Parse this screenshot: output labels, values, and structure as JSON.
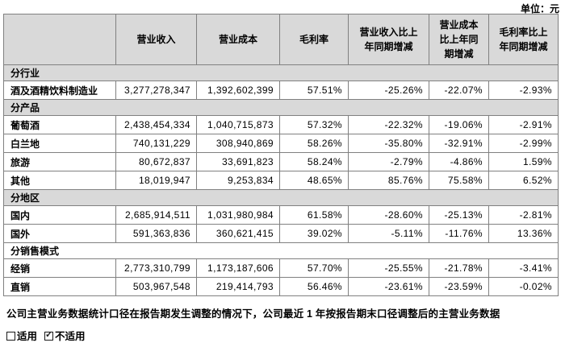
{
  "unit_label": "单位：元",
  "colors": {
    "shaded_row_bg": "#d9d9d9",
    "table_border": "#808080",
    "outer_border": "#5a5a5a",
    "text": "#000000"
  },
  "table": {
    "header": [
      "",
      "营业收入",
      "营业成本",
      "毛利率",
      "营业收入比上\n年同期增减",
      "营业成本\n比上年同\n期增减",
      "毛利率比上\n年同期增减"
    ],
    "rows": [
      {
        "type": "section",
        "label": "分行业",
        "shaded": true
      },
      {
        "type": "data",
        "label": "酒及酒精饮料制造业",
        "values": [
          "3,277,278,347",
          "1,392,602,399",
          "57.51%",
          "-25.26%",
          "-22.07%",
          "-2.93%"
        ]
      },
      {
        "type": "section",
        "label": "分产品",
        "shaded": true
      },
      {
        "type": "data",
        "label": "葡萄酒",
        "values": [
          "2,438,454,334",
          "1,040,715,873",
          "57.32%",
          "-22.32%",
          "-19.06%",
          "-2.91%"
        ]
      },
      {
        "type": "data",
        "label": "白兰地",
        "values": [
          "740,131,229",
          "308,940,869",
          "58.26%",
          "-35.80%",
          "-32.91%",
          "-2.99%"
        ]
      },
      {
        "type": "data",
        "label": "旅游",
        "values": [
          "80,672,837",
          "33,691,823",
          "58.24%",
          "-2.79%",
          "-4.86%",
          "1.59%"
        ]
      },
      {
        "type": "data",
        "label": "其他",
        "values": [
          "18,019,947",
          "9,253,834",
          "48.65%",
          "85.76%",
          "75.58%",
          "6.52%"
        ]
      },
      {
        "type": "section",
        "label": "分地区",
        "shaded": true
      },
      {
        "type": "data",
        "label": "国内",
        "values": [
          "2,685,914,511",
          "1,031,980,984",
          "61.58%",
          "-28.60%",
          "-25.13%",
          "-2.81%"
        ]
      },
      {
        "type": "data",
        "label": "国外",
        "values": [
          "591,363,836",
          "360,621,415",
          "39.02%",
          "-5.11%",
          "-11.76%",
          "13.36%"
        ]
      },
      {
        "type": "section",
        "label": "分销售模式",
        "shaded": false
      },
      {
        "type": "data",
        "label": "经销",
        "values": [
          "2,773,310,799",
          "1,173,187,606",
          "57.70%",
          "-25.55%",
          "-21.78%",
          "-3.41%"
        ]
      },
      {
        "type": "data",
        "label": "直销",
        "values": [
          "503,967,548",
          "219,414,793",
          "56.46%",
          "-23.61%",
          "-23.59%",
          "-0.02%"
        ]
      }
    ]
  },
  "note": "公司主营业务数据统计口径在报告期发生调整的情况下，公司最近 1 年按报告期末口径调整后的主营业务数据",
  "options": {
    "applicable": {
      "label": "适用",
      "checked": false
    },
    "not_applicable": {
      "label": "不适用",
      "checked": true
    }
  }
}
